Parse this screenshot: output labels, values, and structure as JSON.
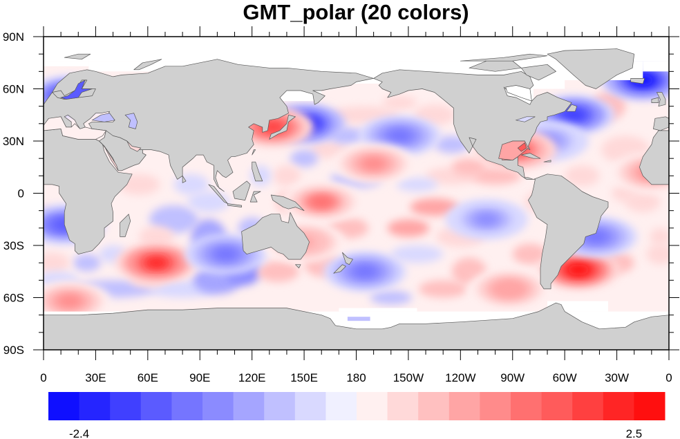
{
  "title": "GMT_polar (20 colors)",
  "chart_data": {
    "type": "heatmap",
    "title": "GMT_polar (20 colors)",
    "projection": "cylindrical-equidistant",
    "center_lon": 180,
    "lon_range": [
      0,
      360
    ],
    "lat_range": [
      -90,
      90
    ],
    "xlabel": "",
    "ylabel": "",
    "x_ticks": [
      {
        "lon": 0,
        "label": "0"
      },
      {
        "lon": 30,
        "label": "30E"
      },
      {
        "lon": 60,
        "label": "60E"
      },
      {
        "lon": 90,
        "label": "90E"
      },
      {
        "lon": 120,
        "label": "120E"
      },
      {
        "lon": 150,
        "label": "150E"
      },
      {
        "lon": 180,
        "label": "180"
      },
      {
        "lon": 210,
        "label": "150W"
      },
      {
        "lon": 240,
        "label": "120W"
      },
      {
        "lon": 270,
        "label": "90W"
      },
      {
        "lon": 300,
        "label": "60W"
      },
      {
        "lon": 330,
        "label": "30W"
      },
      {
        "lon": 360,
        "label": "0"
      }
    ],
    "y_ticks": [
      {
        "lat": 90,
        "label": "90N"
      },
      {
        "lat": 60,
        "label": "60N"
      },
      {
        "lat": 30,
        "label": "30N"
      },
      {
        "lat": 0,
        "label": "0"
      },
      {
        "lat": -30,
        "label": "30S"
      },
      {
        "lat": -60,
        "label": "60S"
      },
      {
        "lat": -90,
        "label": "90S"
      }
    ],
    "minor_tick_step_deg": 10,
    "land_color": "#d0d0d0",
    "missing_color": "#ffffff",
    "colorbar": {
      "orientation": "horizontal",
      "colors": [
        "#0f0fff",
        "#2525ff",
        "#4040ff",
        "#5b5bff",
        "#7575ff",
        "#8b8bff",
        "#a5a5ff",
        "#c0c0ff",
        "#d9d9ff",
        "#f0f0ff",
        "#fff0f0",
        "#ffd9d9",
        "#ffc0c0",
        "#ffa5a5",
        "#ff8b8b",
        "#ff7070",
        "#ff5b5b",
        "#ff4040",
        "#ff2525",
        "#ff0f0f"
      ],
      "min_label": "-2.4",
      "max_label": "2.5",
      "min_value": -2.4,
      "max_value": 2.5
    },
    "anomaly_features": [
      {
        "name": "south-indian-ocean-warm",
        "lon": 65,
        "lat": -40,
        "value": 2.1
      },
      {
        "name": "south-atlantic-warm",
        "lon": 308,
        "lat": -44,
        "value": 2.3
      },
      {
        "name": "kuroshio-cold",
        "lon": 150,
        "lat": 40,
        "value": -2.2
      },
      {
        "name": "japan-sea-warm",
        "lon": 132,
        "lat": 38,
        "value": 1.8
      },
      {
        "name": "north-pacific-cold",
        "lon": 205,
        "lat": 33,
        "value": -1.2
      },
      {
        "name": "hawaii-warm",
        "lon": 190,
        "lat": 17,
        "value": 1.2
      },
      {
        "name": "southeast-indian-cold",
        "lon": 105,
        "lat": -35,
        "value": -1.4
      },
      {
        "name": "south-pacific-cold",
        "lon": 185,
        "lat": -45,
        "value": -1.2
      },
      {
        "name": "east-pacific-cold",
        "lon": 255,
        "lat": -15,
        "value": -1.0
      },
      {
        "name": "gulf-stream-cold",
        "lon": 305,
        "lat": 45,
        "value": -1.8
      },
      {
        "name": "subtropical-atlantic-cold",
        "lon": 290,
        "lat": 30,
        "value": -1.0
      },
      {
        "name": "gulf-of-mexico-warm",
        "lon": 272,
        "lat": 25,
        "value": 1.6
      },
      {
        "name": "iceland-cold",
        "lon": 345,
        "lat": 65,
        "value": -2.2
      },
      {
        "name": "baltic-cold",
        "lon": 15,
        "lat": 56,
        "value": -2.0
      },
      {
        "name": "benguela-cold",
        "lon": 12,
        "lat": -18,
        "value": -1.6
      },
      {
        "name": "west-pacific-warm",
        "lon": 160,
        "lat": -5,
        "value": 1.3
      },
      {
        "name": "southern-ocean-atlantic-warm",
        "lon": 15,
        "lat": -62,
        "value": 1.2
      },
      {
        "name": "guinea-warm",
        "lon": 350,
        "lat": 12,
        "value": 1.2
      },
      {
        "name": "brazil-cold",
        "lon": 318,
        "lat": -25,
        "value": -1.2
      },
      {
        "name": "tasman-warm",
        "lon": 150,
        "lat": -28,
        "value": 0.9
      },
      {
        "name": "south-pacific-east-warm",
        "lon": 268,
        "lat": -55,
        "value": 1.0
      }
    ]
  }
}
